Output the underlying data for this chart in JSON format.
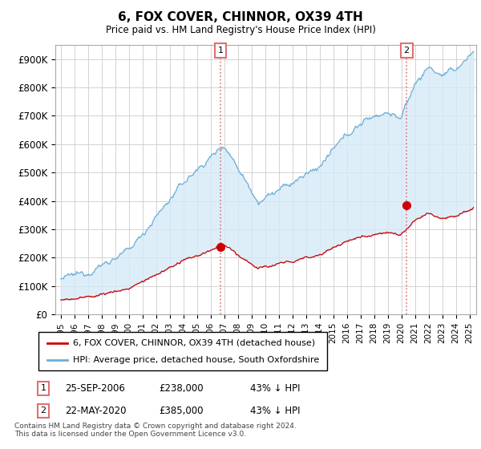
{
  "title": "6, FOX COVER, CHINNOR, OX39 4TH",
  "subtitle": "Price paid vs. HM Land Registry's House Price Index (HPI)",
  "ylabel_vals": [
    "£0",
    "£100K",
    "£200K",
    "£300K",
    "£400K",
    "£500K",
    "£600K",
    "£700K",
    "£800K",
    "£900K"
  ],
  "yticks": [
    0,
    100000,
    200000,
    300000,
    400000,
    500000,
    600000,
    700000,
    800000,
    900000
  ],
  "ylim": [
    0,
    950000
  ],
  "xlim_start": 1994.6,
  "xlim_end": 2025.5,
  "sale1_date": 2006.73,
  "sale1_price": 238000,
  "sale1_label": "1",
  "sale2_date": 2020.39,
  "sale2_price": 385000,
  "sale2_label": "2",
  "hpi_color": "#6baed6",
  "hpi_fill_color": "#d6eaf8",
  "price_color": "#cc0000",
  "vline_color": "#e07070",
  "bg_color": "#ffffff",
  "grid_color": "#cccccc",
  "legend_label_red": "6, FOX COVER, CHINNOR, OX39 4TH (detached house)",
  "legend_label_blue": "HPI: Average price, detached house, South Oxfordshire",
  "footnote": "Contains HM Land Registry data © Crown copyright and database right 2024.\nThis data is licensed under the Open Government Licence v3.0."
}
